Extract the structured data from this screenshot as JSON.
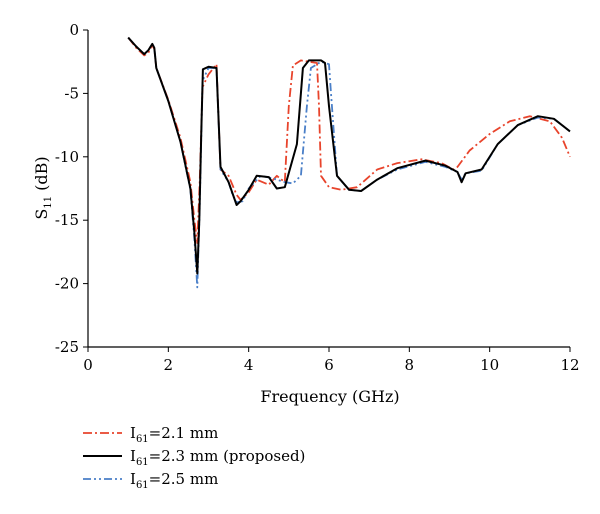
{
  "chart_data": {
    "type": "line",
    "title": "",
    "xlabel": "Frequency (GHz)",
    "ylabel_main": "S",
    "ylabel_sub": "11",
    "ylabel_unit": " (dB)",
    "xlim": [
      0,
      12
    ],
    "ylim": [
      -25,
      0
    ],
    "xticks": [
      0,
      2,
      4,
      6,
      8,
      10,
      12
    ],
    "yticks": [
      0,
      -5,
      -10,
      -15,
      -20,
      -25
    ],
    "grid": false,
    "legend_position": "bottom-left",
    "series": [
      {
        "label_main": "I",
        "label_sub": "61",
        "label_rest": "=2.1 mm",
        "color": "#e8442c",
        "dash": "dashdot",
        "points": [
          [
            1.0,
            -0.6
          ],
          [
            1.2,
            -1.4
          ],
          [
            1.4,
            -2.0
          ],
          [
            1.5,
            -1.8
          ],
          [
            1.6,
            -1.2
          ],
          [
            1.65,
            -1.5
          ],
          [
            1.7,
            -3.0
          ],
          [
            2.0,
            -5.5
          ],
          [
            2.3,
            -8.5
          ],
          [
            2.55,
            -12.0
          ],
          [
            2.65,
            -15.0
          ],
          [
            2.72,
            -16.8
          ],
          [
            2.78,
            -12.0
          ],
          [
            2.85,
            -4.5
          ],
          [
            3.0,
            -3.5
          ],
          [
            3.2,
            -2.7
          ],
          [
            3.3,
            -11.0
          ],
          [
            3.5,
            -11.5
          ],
          [
            3.7,
            -13.0
          ],
          [
            3.8,
            -13.4
          ],
          [
            4.0,
            -12.8
          ],
          [
            4.2,
            -11.8
          ],
          [
            4.5,
            -12.2
          ],
          [
            4.7,
            -11.5
          ],
          [
            4.9,
            -12.0
          ],
          [
            5.0,
            -6.0
          ],
          [
            5.1,
            -2.8
          ],
          [
            5.3,
            -2.4
          ],
          [
            5.5,
            -2.5
          ],
          [
            5.7,
            -2.6
          ],
          [
            5.75,
            -6.0
          ],
          [
            5.8,
            -11.5
          ],
          [
            6.0,
            -12.4
          ],
          [
            6.3,
            -12.6
          ],
          [
            6.7,
            -12.4
          ],
          [
            7.2,
            -11.0
          ],
          [
            7.7,
            -10.5
          ],
          [
            8.3,
            -10.2
          ],
          [
            8.8,
            -10.5
          ],
          [
            9.1,
            -11.0
          ],
          [
            9.2,
            -10.8
          ],
          [
            9.5,
            -9.5
          ],
          [
            10.0,
            -8.2
          ],
          [
            10.5,
            -7.2
          ],
          [
            11.0,
            -6.8
          ],
          [
            11.5,
            -7.2
          ],
          [
            11.8,
            -8.5
          ],
          [
            12.0,
            -10.0
          ]
        ]
      },
      {
        "label_main": "I",
        "label_sub": "61",
        "label_rest": "=2.3 mm (proposed)",
        "color": "#000000",
        "dash": "solid",
        "points": [
          [
            1.0,
            -0.6
          ],
          [
            1.2,
            -1.3
          ],
          [
            1.4,
            -1.9
          ],
          [
            1.5,
            -1.6
          ],
          [
            1.6,
            -1.1
          ],
          [
            1.65,
            -1.4
          ],
          [
            1.7,
            -3.0
          ],
          [
            2.0,
            -5.6
          ],
          [
            2.3,
            -8.8
          ],
          [
            2.55,
            -12.5
          ],
          [
            2.65,
            -16.0
          ],
          [
            2.72,
            -19.2
          ],
          [
            2.77,
            -15.0
          ],
          [
            2.82,
            -8.0
          ],
          [
            2.86,
            -3.1
          ],
          [
            3.0,
            -2.9
          ],
          [
            3.2,
            -3.0
          ],
          [
            3.3,
            -10.8
          ],
          [
            3.5,
            -12.0
          ],
          [
            3.7,
            -13.8
          ],
          [
            3.8,
            -13.5
          ],
          [
            4.0,
            -12.6
          ],
          [
            4.2,
            -11.5
          ],
          [
            4.5,
            -11.6
          ],
          [
            4.7,
            -12.5
          ],
          [
            4.9,
            -12.4
          ],
          [
            5.2,
            -9.0
          ],
          [
            5.35,
            -3.0
          ],
          [
            5.5,
            -2.4
          ],
          [
            5.8,
            -2.4
          ],
          [
            5.9,
            -2.6
          ],
          [
            6.0,
            -6.0
          ],
          [
            6.2,
            -11.5
          ],
          [
            6.5,
            -12.6
          ],
          [
            6.8,
            -12.7
          ],
          [
            7.2,
            -11.8
          ],
          [
            7.7,
            -10.9
          ],
          [
            8.4,
            -10.3
          ],
          [
            8.9,
            -10.7
          ],
          [
            9.2,
            -11.2
          ],
          [
            9.3,
            -12.0
          ],
          [
            9.4,
            -11.3
          ],
          [
            9.8,
            -11.0
          ],
          [
            10.2,
            -9.0
          ],
          [
            10.7,
            -7.5
          ],
          [
            11.2,
            -6.8
          ],
          [
            11.6,
            -7.0
          ],
          [
            12.0,
            -8.0
          ]
        ]
      },
      {
        "label_main": "I",
        "label_sub": "61",
        "label_rest": "=2.5 mm",
        "color": "#4a7fc8",
        "dash": "dashdotdot",
        "points": [
          [
            1.0,
            -0.6
          ],
          [
            1.2,
            -1.3
          ],
          [
            1.4,
            -1.9
          ],
          [
            1.5,
            -1.6
          ],
          [
            1.6,
            -1.1
          ],
          [
            1.65,
            -1.4
          ],
          [
            1.7,
            -3.0
          ],
          [
            2.0,
            -5.6
          ],
          [
            2.3,
            -8.8
          ],
          [
            2.55,
            -12.6
          ],
          [
            2.65,
            -16.5
          ],
          [
            2.72,
            -20.3
          ],
          [
            2.78,
            -14.0
          ],
          [
            2.85,
            -4.0
          ],
          [
            3.0,
            -3.0
          ],
          [
            3.2,
            -3.0
          ],
          [
            3.3,
            -11.0
          ],
          [
            3.5,
            -12.0
          ],
          [
            3.6,
            -13.0
          ],
          [
            3.7,
            -13.6
          ],
          [
            3.85,
            -13.5
          ],
          [
            4.0,
            -12.5
          ],
          [
            4.3,
            -11.5
          ],
          [
            4.6,
            -11.7
          ],
          [
            4.9,
            -12.0
          ],
          [
            5.1,
            -12.1
          ],
          [
            5.3,
            -11.5
          ],
          [
            5.45,
            -6.0
          ],
          [
            5.55,
            -3.0
          ],
          [
            5.8,
            -2.5
          ],
          [
            6.0,
            -2.7
          ],
          [
            6.05,
            -5.0
          ],
          [
            6.2,
            -11.5
          ],
          [
            6.5,
            -12.6
          ],
          [
            6.8,
            -12.7
          ],
          [
            7.2,
            -11.8
          ],
          [
            7.7,
            -11.0
          ],
          [
            8.4,
            -10.4
          ],
          [
            8.9,
            -10.8
          ],
          [
            9.2,
            -11.2
          ],
          [
            9.3,
            -11.8
          ],
          [
            9.4,
            -11.3
          ],
          [
            9.8,
            -11.1
          ],
          [
            10.2,
            -9.0
          ],
          [
            10.7,
            -7.5
          ],
          [
            11.2,
            -6.9
          ],
          [
            11.6,
            -7.0
          ],
          [
            12.0,
            -8.0
          ]
        ]
      }
    ]
  }
}
